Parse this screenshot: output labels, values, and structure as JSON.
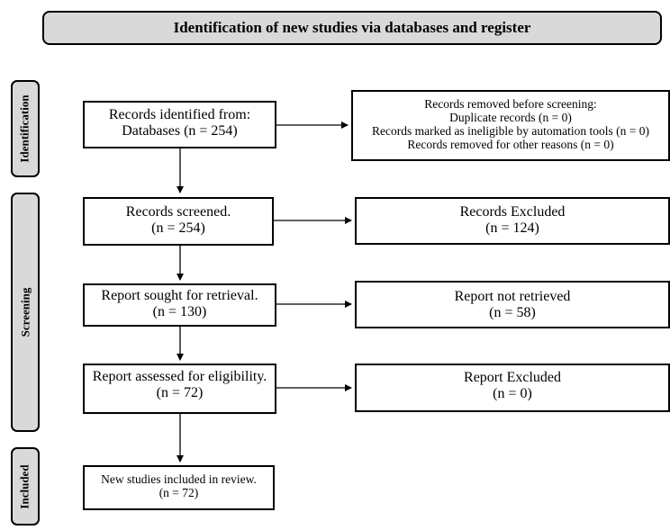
{
  "header": {
    "title": "Identification of new studies via databases and register"
  },
  "phases": {
    "identification": "Identification",
    "screening": "Screening",
    "included": "Included"
  },
  "boxes": {
    "identified": {
      "line1": "Records identified  from:",
      "line2": "Databases (n = 254)"
    },
    "removed": {
      "line1": "Records removed before screening:",
      "line2": "Duplicate records (n = 0)",
      "line3": "Records marked as ineligible by automation tools (n = 0)",
      "line4": "Records removed for other reasons (n = 0)"
    },
    "screened": {
      "line1": "Records screened.",
      "line2": "(n = 254)"
    },
    "excluded": {
      "line1": "Records Excluded",
      "line2": "(n = 124)"
    },
    "sought": {
      "line1": "Report sought for retrieval.",
      "line2": "(n = 130)"
    },
    "not_retrieved": {
      "line1": "Report not retrieved",
      "line2": "(n = 58)"
    },
    "assessed": {
      "line1": "Report assessed for eligibility.",
      "line2": "(n = 72)"
    },
    "report_excluded": {
      "line1": "Report Excluded",
      "line2": "(n = 0)"
    },
    "included": {
      "line1": "New studies included in review.",
      "line2": "(n = 72)"
    }
  }
}
